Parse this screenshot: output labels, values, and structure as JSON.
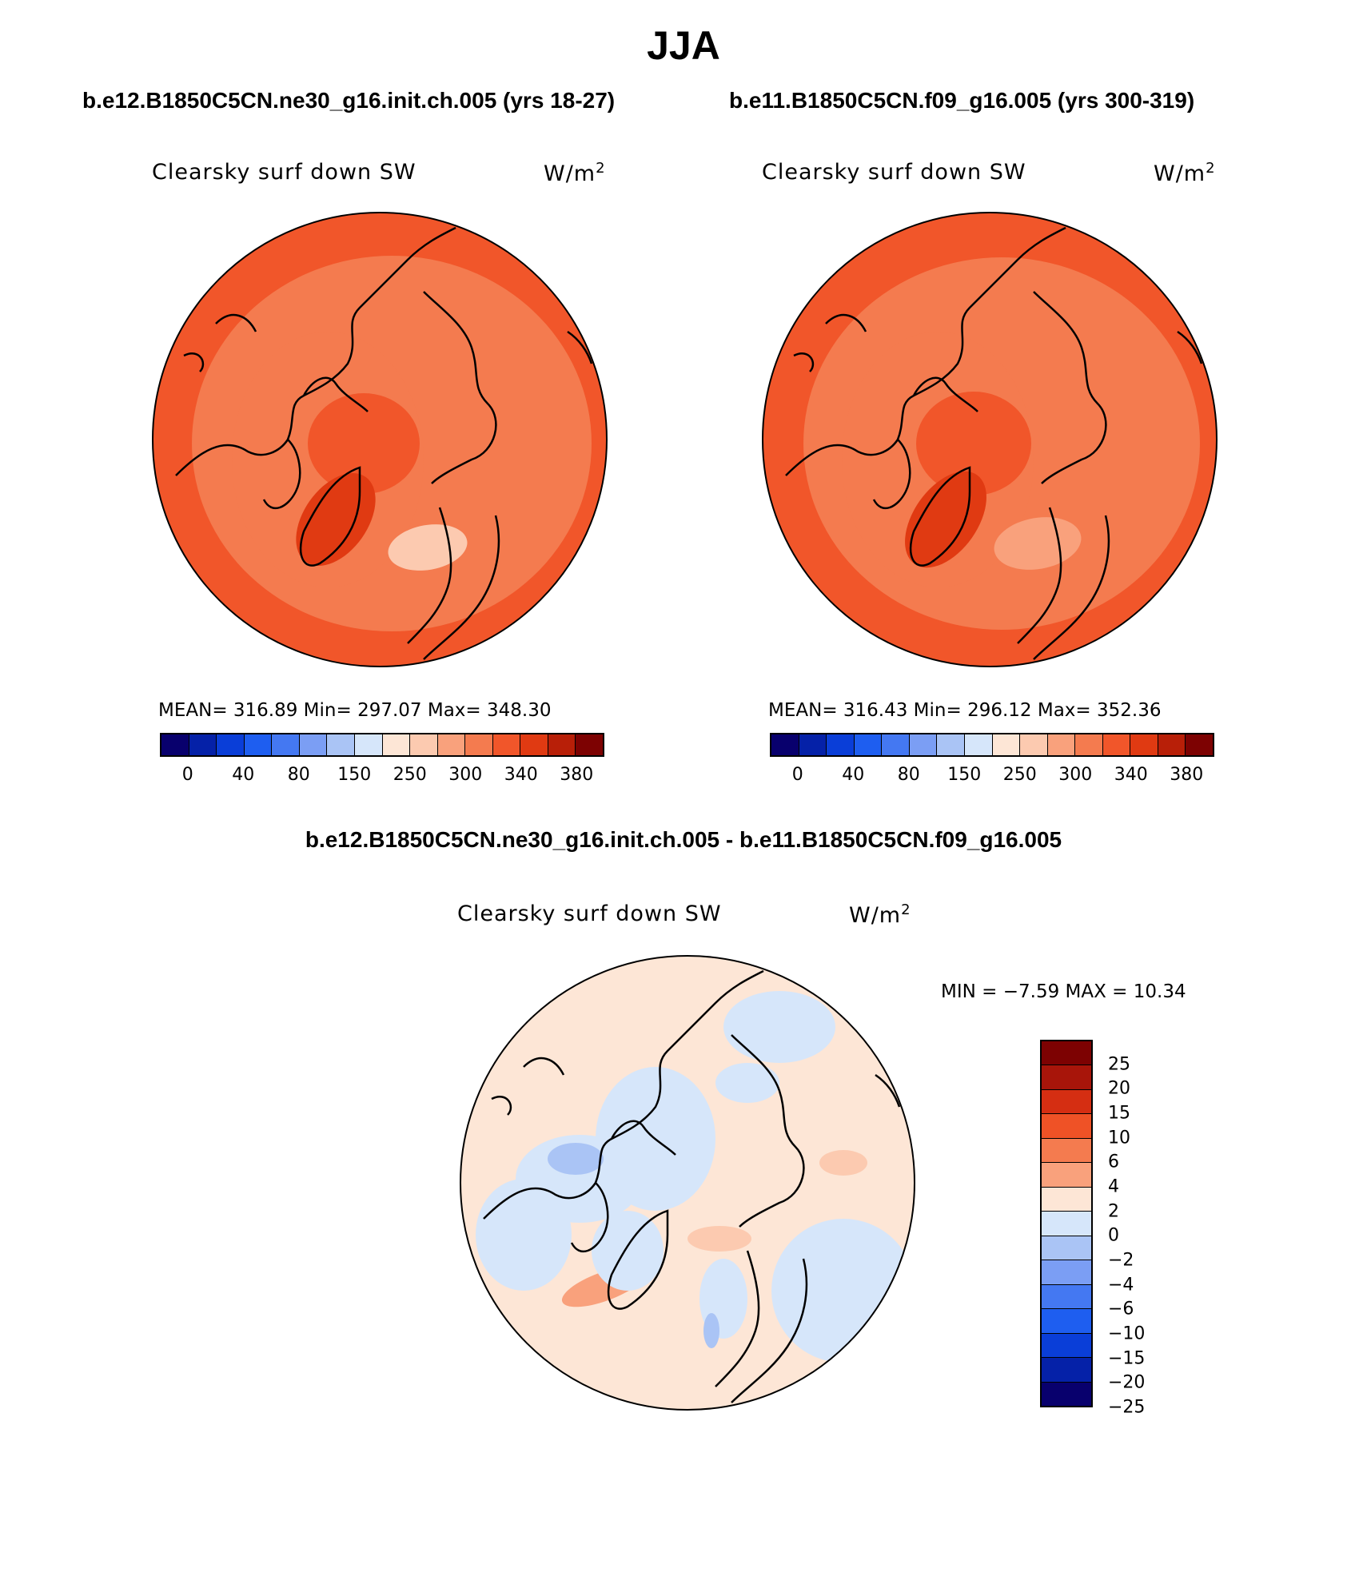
{
  "main_title": "JJA",
  "panels": [
    {
      "case_title": "b.e12.B1850C5CN.ne30_g16.init.ch.005 (yrs 18-27)",
      "variable": "Clearsky surf down SW",
      "units": "W/m",
      "units_sup": "2",
      "stats_text": "MEAN= 316.89   Min= 297.07   Max= 348.30",
      "mean": 316.89,
      "min": 297.07,
      "max": 348.3
    },
    {
      "case_title": "b.e11.B1850C5CN.f09_g16.005 (yrs 300-319)",
      "variable": "Clearsky surf down SW",
      "units": "W/m",
      "units_sup": "2",
      "stats_text": "MEAN= 316.43   Min= 296.12   Max= 352.36",
      "mean": 316.43,
      "min": 296.12,
      "max": 352.36
    }
  ],
  "abs_colorbar": {
    "colors": [
      "#08006d",
      "#0521a8",
      "#0a3ed8",
      "#1e5ef0",
      "#4478f2",
      "#7b9ef4",
      "#aac4f5",
      "#d6e6fa",
      "#fde6d6",
      "#fccab0",
      "#f9a17c",
      "#f47b4f",
      "#f1562a",
      "#e03a12",
      "#b81f08",
      "#7d0202"
    ],
    "tick_labels": [
      "0",
      "40",
      "80",
      "150",
      "250",
      "300",
      "340",
      "380"
    ]
  },
  "difference": {
    "title": "b.e12.B1850C5CN.ne30_g16.init.ch.005 - b.e11.B1850C5CN.f09_g16.005",
    "variable": "Clearsky surf down SW",
    "units": "W/m",
    "units_sup": "2",
    "minmax_text": "MIN =   −7.59  MAX =    10.34",
    "min": -7.59,
    "max": 10.34,
    "colorbar": {
      "colors": [
        "#7d0202",
        "#a8150a",
        "#d52e12",
        "#ef5226",
        "#f47b4f",
        "#f9a17c",
        "#fde6d6",
        "#d6e6fa",
        "#aac4f5",
        "#7b9ef4",
        "#4478f2",
        "#1e5ef0",
        "#0a3ed8",
        "#0521a8",
        "#08006d"
      ],
      "tick_labels": [
        "25",
        "20",
        "15",
        "10",
        "6",
        "4",
        "2",
        "0",
        "−2",
        "−4",
        "−6",
        "−10",
        "−15",
        "−20",
        "−25"
      ]
    }
  }
}
